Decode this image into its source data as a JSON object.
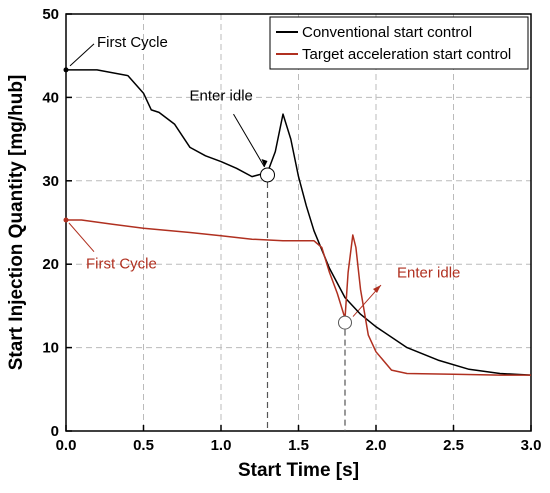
{
  "chart_data": {
    "type": "line",
    "xlabel": "Start Time [s]",
    "ylabel": "Start Injection Quantity [mg/hub]",
    "xlim": [
      0,
      3.0
    ],
    "ylim": [
      0,
      50
    ],
    "x_ticks": [
      "0.0",
      "0.5",
      "1.0",
      "1.5",
      "2.0",
      "2.5",
      "3.0"
    ],
    "y_ticks": [
      "0",
      "10",
      "20",
      "30",
      "40",
      "50"
    ],
    "grid": true,
    "legend_position": "top-right",
    "colors": {
      "conventional": "#000000",
      "target": "#b03020",
      "grid": "#bbbbbb"
    },
    "series": [
      {
        "name": "Conventional start control",
        "x": [
          0.0,
          0.2,
          0.4,
          0.5,
          0.55,
          0.6,
          0.7,
          0.8,
          0.9,
          1.0,
          1.1,
          1.2,
          1.3,
          1.35,
          1.4,
          1.45,
          1.5,
          1.55,
          1.6,
          1.7,
          1.8,
          1.9,
          2.0,
          2.2,
          2.4,
          2.6,
          2.8,
          3.0
        ],
        "y": [
          43.3,
          43.3,
          42.6,
          40.5,
          38.5,
          38.2,
          36.8,
          34.0,
          33.0,
          32.3,
          31.5,
          30.5,
          31.0,
          33.5,
          38.0,
          35.0,
          30.5,
          27.0,
          24.0,
          19.5,
          16.0,
          14.0,
          12.5,
          10.0,
          8.5,
          7.4,
          6.9,
          6.7
        ]
      },
      {
        "name": "Target acceleration start control",
        "x": [
          0.0,
          0.1,
          0.3,
          0.5,
          0.8,
          1.0,
          1.2,
          1.4,
          1.6,
          1.65,
          1.7,
          1.75,
          1.8,
          1.82,
          1.85,
          1.87,
          1.9,
          1.95,
          2.0,
          2.1,
          2.2,
          2.5,
          2.8,
          3.0
        ],
        "y": [
          25.3,
          25.3,
          24.8,
          24.3,
          23.8,
          23.4,
          23.0,
          22.8,
          22.8,
          22.0,
          19.0,
          16.5,
          13.5,
          19.0,
          23.5,
          22.0,
          17.0,
          11.5,
          9.5,
          7.3,
          6.9,
          6.8,
          6.7,
          6.7
        ]
      }
    ],
    "annotations": [
      {
        "text": "First Cycle",
        "x": 0.0,
        "y": 43.3,
        "series": 0
      },
      {
        "text": "Enter idle",
        "x": 1.3,
        "y": 30.7,
        "series": 0
      },
      {
        "text": "First Cycle",
        "x": 0.0,
        "y": 25.3,
        "series": 1
      },
      {
        "text": "Enter idle",
        "x": 1.8,
        "y": 13.0,
        "series": 1
      }
    ]
  }
}
